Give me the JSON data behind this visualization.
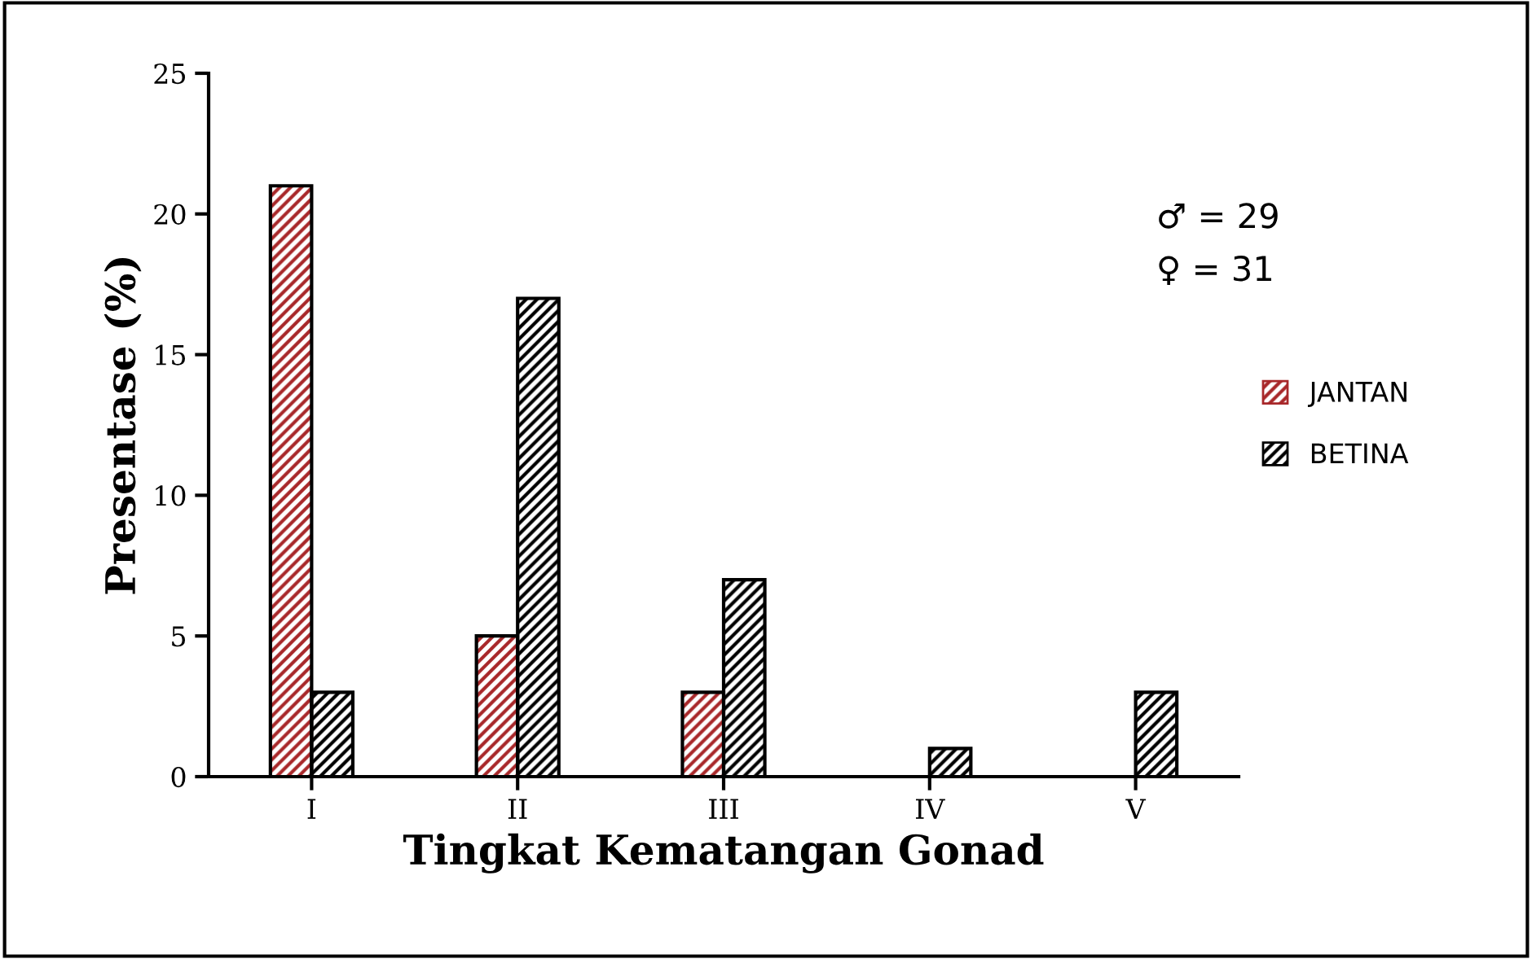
{
  "chart_data": {
    "type": "bar",
    "xlabel": "Tingkat Kematangan Gonad",
    "ylabel": "Presentase (%)",
    "categories": [
      "I",
      "II",
      "III",
      "IV",
      "V"
    ],
    "series": [
      {
        "name": "JANTAN",
        "color": "#a8282a",
        "values": [
          21,
          5,
          3,
          null,
          null
        ]
      },
      {
        "name": "BETINA",
        "color": "#000000",
        "values": [
          3,
          17,
          7,
          1,
          3
        ]
      }
    ],
    "ylim": [
      0,
      25
    ],
    "yticks": [
      0,
      5,
      10,
      15,
      20,
      25
    ],
    "grid": false,
    "legend": "right",
    "annotations": [
      "♂ = 29",
      "♀ = 31"
    ]
  }
}
